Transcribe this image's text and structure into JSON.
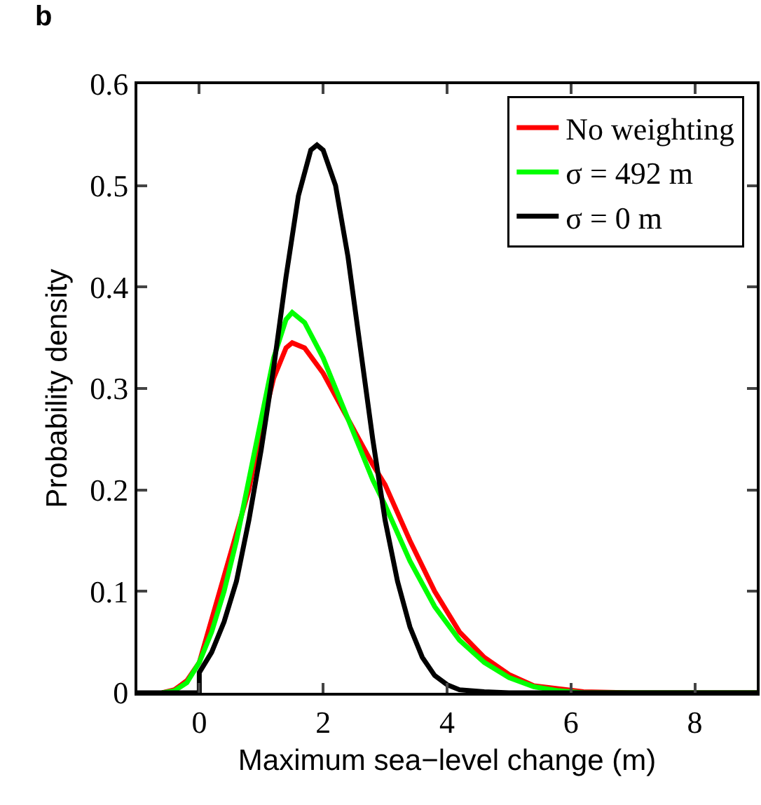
{
  "chart_data": {
    "type": "line",
    "xlabel": "Maximum sea−level change (m)",
    "ylabel": "Probability density",
    "annotations": [
      "b"
    ],
    "xlim": [
      -1,
      9
    ],
    "xticks": [
      0,
      2,
      4,
      6,
      8
    ],
    "ylim": [
      0,
      0.6
    ],
    "yticks": [
      0,
      0.1,
      0.2,
      0.3,
      0.4,
      0.5,
      0.6
    ],
    "grid": false,
    "legend": "top right",
    "line_style": "solid",
    "marker": "none",
    "series": [
      {
        "name": "No weighting",
        "color": "#ff0000",
        "x": [
          -0.6,
          -0.4,
          -0.2,
          0,
          0.2,
          0.4,
          0.6,
          0.8,
          1.0,
          1.2,
          1.4,
          1.5,
          1.7,
          2.0,
          2.4,
          2.8,
          3.0,
          3.4,
          3.8,
          4.2,
          4.6,
          5.0,
          5.4,
          5.8,
          6.2,
          7,
          9
        ],
        "values": [
          0,
          0.003,
          0.012,
          0.03,
          null,
          null,
          null,
          0.2,
          0.26,
          0.31,
          0.34,
          0.345,
          0.34,
          0.315,
          0.27,
          0.225,
          0.205,
          0.15,
          0.1,
          0.06,
          0.035,
          0.018,
          0.007,
          null,
          0.001,
          0,
          0
        ]
      },
      {
        "name": "σ = 492 m",
        "color": "#00ff00",
        "x": [
          -0.6,
          -0.4,
          -0.2,
          0,
          0.2,
          0.4,
          0.6,
          0.8,
          1.0,
          1.2,
          1.4,
          1.5,
          1.7,
          2.0,
          2.4,
          2.8,
          3.0,
          3.4,
          3.8,
          4.2,
          4.6,
          5.0,
          5.4,
          5.8,
          6.2,
          7,
          9
        ],
        "values": [
          0,
          0.002,
          0.01,
          0.03,
          0.06,
          0.1,
          0.15,
          0.21,
          0.27,
          0.33,
          0.368,
          0.375,
          0.365,
          0.33,
          0.27,
          0.21,
          0.185,
          0.13,
          0.085,
          0.052,
          0.03,
          0.015,
          0.006,
          0.002,
          0,
          0,
          0
        ]
      },
      {
        "name": "σ = 0 m",
        "color": "#000000",
        "x": [
          -1,
          0,
          0,
          0.2,
          0.4,
          0.6,
          0.8,
          1.0,
          1.2,
          1.4,
          1.6,
          1.8,
          1.9,
          2.0,
          2.2,
          2.4,
          2.6,
          2.8,
          3.0,
          3.2,
          3.4,
          3.6,
          3.8,
          4.0,
          4.2,
          4.6,
          5,
          9
        ],
        "values": [
          0,
          0,
          0.02,
          0.04,
          0.07,
          0.11,
          0.17,
          0.24,
          0.32,
          0.41,
          0.49,
          0.535,
          0.54,
          0.535,
          0.5,
          0.43,
          0.34,
          0.25,
          0.17,
          0.11,
          0.065,
          0.035,
          0.017,
          0.008,
          0.003,
          0.001,
          0,
          0
        ]
      }
    ]
  }
}
